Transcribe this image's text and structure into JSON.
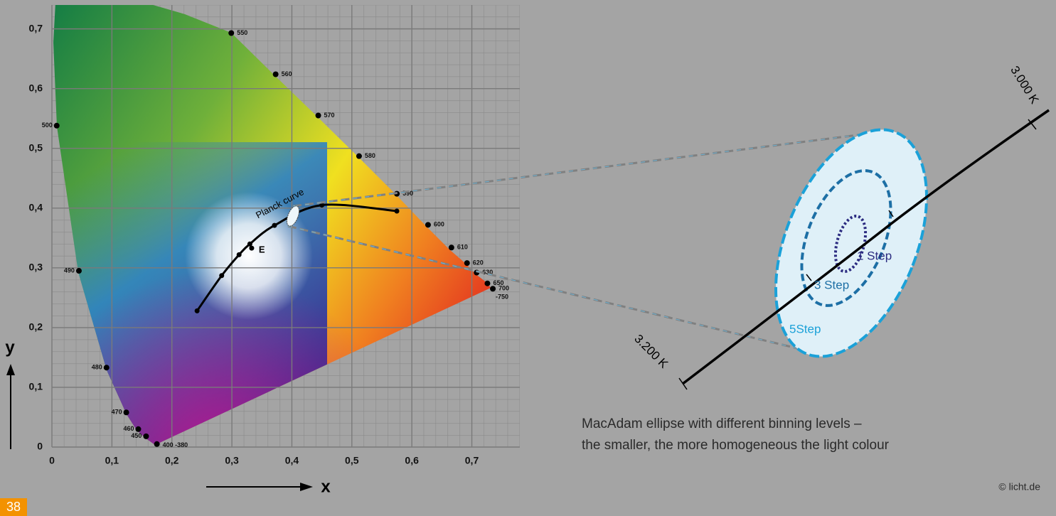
{
  "chart_data": {
    "type": "scatter",
    "xlabel": "x",
    "ylabel": "y",
    "xlim": [
      0,
      0.78
    ],
    "ylim": [
      0,
      0.74
    ],
    "xticks": [
      0,
      {
        "value": 0.1,
        "label": "0,1"
      },
      {
        "value": 0.2,
        "label": "0,2"
      },
      {
        "value": 0.3,
        "label": "0,3"
      },
      {
        "value": 0.4,
        "label": "0,4"
      },
      {
        "value": 0.5,
        "label": "0,5"
      },
      {
        "value": 0.6,
        "label": "0,6"
      },
      {
        "value": 0.7,
        "label": "0,7"
      }
    ],
    "yticks": [
      0,
      {
        "value": 0.1,
        "label": "0,1"
      },
      {
        "value": 0.2,
        "label": "0,2"
      },
      {
        "value": 0.3,
        "label": "0,3"
      },
      {
        "value": 0.4,
        "label": "0,4"
      },
      {
        "value": 0.5,
        "label": "0,5"
      },
      {
        "value": 0.6,
        "label": "0,6"
      },
      {
        "value": 0.7,
        "label": "0,7"
      }
    ],
    "grid": true,
    "spectral_locus": {
      "labels": [
        "400 -380",
        "450",
        "460",
        "470",
        "480",
        "490",
        "500",
        "550",
        "560",
        "570",
        "580",
        "590",
        "600",
        "610",
        "620",
        "630",
        "650",
        "700"
      ],
      "x": [
        0.175,
        0.157,
        0.144,
        0.124,
        0.091,
        0.045,
        0.008,
        0.299,
        0.373,
        0.444,
        0.512,
        0.575,
        0.627,
        0.666,
        0.692,
        0.708,
        0.726,
        0.735
      ],
      "y": [
        0.005,
        0.018,
        0.03,
        0.058,
        0.133,
        0.295,
        0.538,
        0.693,
        0.624,
        0.555,
        0.487,
        0.424,
        0.372,
        0.334,
        0.308,
        0.292,
        0.274,
        0.265
      ],
      "color": "#000000"
    },
    "extra_label": "-750",
    "planck_curve": {
      "label": "Planck curve",
      "x": [
        0.242,
        0.283,
        0.312,
        0.33,
        0.371,
        0.45,
        0.575
      ],
      "y": [
        0.228,
        0.287,
        0.322,
        0.34,
        0.371,
        0.405,
        0.395
      ],
      "color": "#000000"
    },
    "point_E": {
      "label": "E",
      "x": 0.333,
      "y": 0.333
    }
  },
  "inset": {
    "temp_high": "3.000 K",
    "temp_low": "3.200 K",
    "step1": "1 Step",
    "step3": "3 Step",
    "step5": "5Step"
  },
  "caption": [
    "MacAdam ellipse with different binning levels –",
    "the smaller, the more homogeneous the light colour"
  ],
  "credit": "© licht.de",
  "page_number": "38"
}
